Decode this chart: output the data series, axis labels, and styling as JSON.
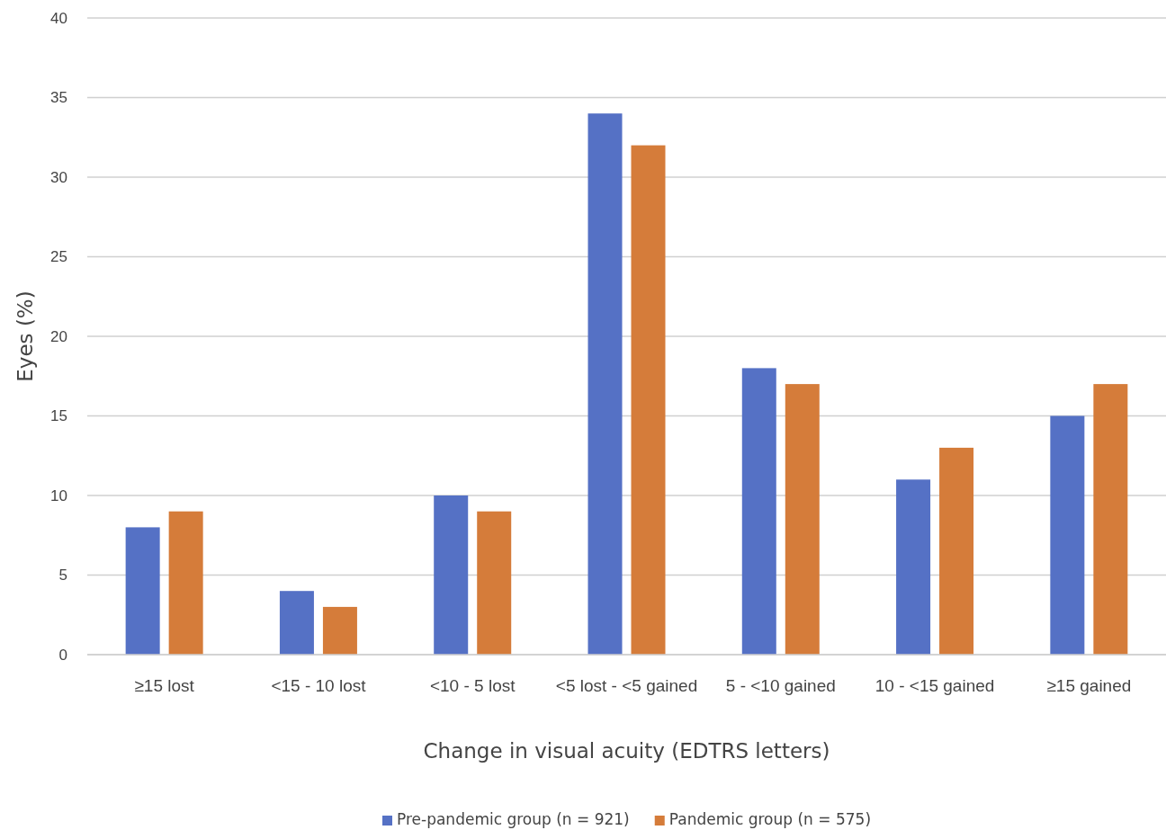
{
  "chart_data": {
    "type": "bar",
    "xlabel": "Change in visual acuity (EDTRS letters)",
    "ylabel": "Eyes (%)",
    "categories": [
      "≥15 lost",
      "<15 - 10 lost",
      "<10 - 5 lost",
      "<5 lost - <5 gained",
      "5 - <10 gained",
      "10 - <15 gained",
      "≥15 gained"
    ],
    "series": [
      {
        "name": "Pre-pandemic group (n = 921)",
        "color": "#5571c5",
        "values": [
          8,
          4,
          10,
          34,
          18,
          11,
          15
        ]
      },
      {
        "name": "Pandemic group (n = 575)",
        "color": "#d57c3a",
        "values": [
          9,
          3,
          9,
          32,
          17,
          13,
          17
        ]
      }
    ],
    "ylim": [
      0,
      40
    ],
    "yticks": [
      0,
      5,
      10,
      15,
      20,
      25,
      30,
      35,
      40
    ],
    "grid": "y",
    "legend": "bottom"
  }
}
